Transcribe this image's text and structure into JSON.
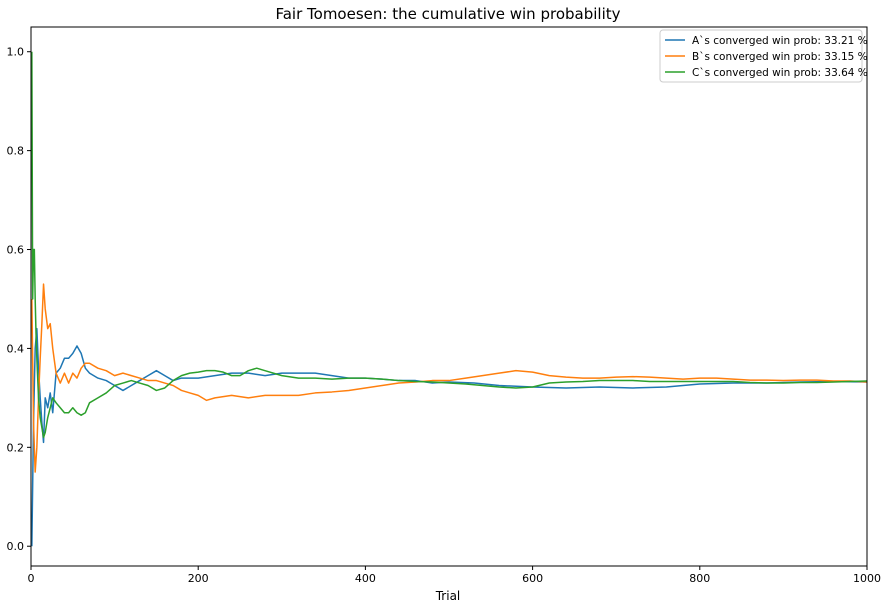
{
  "chart_data": {
    "type": "line",
    "title": "Fair Tomoesen: the cumulative win probability",
    "xlabel": "Trial",
    "ylabel": "",
    "xlim": [
      0,
      1000
    ],
    "ylim": [
      -0.04,
      1.05
    ],
    "xticks": [
      0,
      200,
      400,
      600,
      800,
      1000
    ],
    "yticks": [
      0.0,
      0.2,
      0.4,
      0.6,
      0.8,
      1.0
    ],
    "xtick_labels": [
      "0",
      "200",
      "400",
      "600",
      "800",
      "1000"
    ],
    "ytick_labels": [
      "0.0",
      "0.2",
      "0.4",
      "0.6",
      "0.8",
      "1.0"
    ],
    "grid": false,
    "legend_position": "top-right",
    "series": [
      {
        "name": "A`s converged win prob: 33.21 %",
        "color": "#1f77b4",
        "points": [
          [
            1,
            0
          ],
          [
            3,
            0.25
          ],
          [
            5,
            0.4
          ],
          [
            7,
            0.44
          ],
          [
            9,
            0.36
          ],
          [
            11,
            0.3
          ],
          [
            13,
            0.25
          ],
          [
            15,
            0.21
          ],
          [
            17,
            0.3
          ],
          [
            20,
            0.28
          ],
          [
            23,
            0.31
          ],
          [
            26,
            0.27
          ],
          [
            30,
            0.35
          ],
          [
            35,
            0.36
          ],
          [
            40,
            0.38
          ],
          [
            45,
            0.38
          ],
          [
            50,
            0.39
          ],
          [
            55,
            0.405
          ],
          [
            60,
            0.39
          ],
          [
            65,
            0.36
          ],
          [
            70,
            0.35
          ],
          [
            80,
            0.34
          ],
          [
            90,
            0.335
          ],
          [
            100,
            0.325
          ],
          [
            110,
            0.315
          ],
          [
            120,
            0.325
          ],
          [
            130,
            0.335
          ],
          [
            140,
            0.345
          ],
          [
            150,
            0.355
          ],
          [
            160,
            0.345
          ],
          [
            170,
            0.335
          ],
          [
            180,
            0.34
          ],
          [
            200,
            0.34
          ],
          [
            220,
            0.345
          ],
          [
            240,
            0.35
          ],
          [
            260,
            0.35
          ],
          [
            280,
            0.345
          ],
          [
            300,
            0.35
          ],
          [
            320,
            0.35
          ],
          [
            340,
            0.35
          ],
          [
            360,
            0.345
          ],
          [
            380,
            0.34
          ],
          [
            400,
            0.34
          ],
          [
            420,
            0.338
          ],
          [
            440,
            0.335
          ],
          [
            460,
            0.335
          ],
          [
            480,
            0.33
          ],
          [
            500,
            0.332
          ],
          [
            530,
            0.33
          ],
          [
            560,
            0.325
          ],
          [
            600,
            0.322
          ],
          [
            640,
            0.32
          ],
          [
            680,
            0.322
          ],
          [
            720,
            0.32
          ],
          [
            760,
            0.322
          ],
          [
            800,
            0.328
          ],
          [
            840,
            0.33
          ],
          [
            880,
            0.33
          ],
          [
            920,
            0.332
          ],
          [
            960,
            0.333
          ],
          [
            1000,
            0.332
          ]
        ]
      },
      {
        "name": "B`s converged win prob: 33.15 %",
        "color": "#ff7f0e",
        "points": [
          [
            1,
            0.5
          ],
          [
            3,
            0.25
          ],
          [
            5,
            0.15
          ],
          [
            7,
            0.2
          ],
          [
            9,
            0.3
          ],
          [
            11,
            0.38
          ],
          [
            13,
            0.45
          ],
          [
            15,
            0.53
          ],
          [
            17,
            0.48
          ],
          [
            20,
            0.44
          ],
          [
            23,
            0.45
          ],
          [
            26,
            0.4
          ],
          [
            30,
            0.35
          ],
          [
            35,
            0.33
          ],
          [
            40,
            0.35
          ],
          [
            45,
            0.33
          ],
          [
            50,
            0.35
          ],
          [
            55,
            0.34
          ],
          [
            60,
            0.36
          ],
          [
            65,
            0.37
          ],
          [
            70,
            0.37
          ],
          [
            80,
            0.36
          ],
          [
            90,
            0.355
          ],
          [
            100,
            0.345
          ],
          [
            110,
            0.35
          ],
          [
            120,
            0.345
          ],
          [
            130,
            0.34
          ],
          [
            140,
            0.335
          ],
          [
            150,
            0.335
          ],
          [
            160,
            0.33
          ],
          [
            170,
            0.325
          ],
          [
            180,
            0.315
          ],
          [
            190,
            0.31
          ],
          [
            200,
            0.305
          ],
          [
            210,
            0.295
          ],
          [
            220,
            0.3
          ],
          [
            240,
            0.305
          ],
          [
            260,
            0.3
          ],
          [
            280,
            0.305
          ],
          [
            300,
            0.305
          ],
          [
            320,
            0.305
          ],
          [
            340,
            0.31
          ],
          [
            360,
            0.312
          ],
          [
            380,
            0.315
          ],
          [
            400,
            0.32
          ],
          [
            420,
            0.325
          ],
          [
            440,
            0.33
          ],
          [
            460,
            0.332
          ],
          [
            480,
            0.335
          ],
          [
            500,
            0.335
          ],
          [
            520,
            0.34
          ],
          [
            540,
            0.345
          ],
          [
            560,
            0.35
          ],
          [
            580,
            0.355
          ],
          [
            600,
            0.352
          ],
          [
            620,
            0.345
          ],
          [
            640,
            0.342
          ],
          [
            660,
            0.34
          ],
          [
            680,
            0.34
          ],
          [
            700,
            0.342
          ],
          [
            720,
            0.343
          ],
          [
            740,
            0.342
          ],
          [
            760,
            0.34
          ],
          [
            780,
            0.338
          ],
          [
            800,
            0.34
          ],
          [
            820,
            0.34
          ],
          [
            840,
            0.338
          ],
          [
            860,
            0.336
          ],
          [
            880,
            0.336
          ],
          [
            900,
            0.335
          ],
          [
            920,
            0.336
          ],
          [
            940,
            0.336
          ],
          [
            960,
            0.334
          ],
          [
            980,
            0.334
          ],
          [
            1000,
            0.332
          ]
        ]
      },
      {
        "name": "C`s converged win prob: 33.64 %",
        "color": "#2ca02c",
        "points": [
          [
            1,
            1.0
          ],
          [
            2,
            0.5
          ],
          [
            3,
            0.6
          ],
          [
            4,
            0.6
          ],
          [
            5,
            0.5
          ],
          [
            6,
            0.43
          ],
          [
            7,
            0.38
          ],
          [
            9,
            0.3
          ],
          [
            11,
            0.26
          ],
          [
            13,
            0.24
          ],
          [
            15,
            0.22
          ],
          [
            17,
            0.23
          ],
          [
            20,
            0.26
          ],
          [
            23,
            0.28
          ],
          [
            26,
            0.3
          ],
          [
            30,
            0.29
          ],
          [
            35,
            0.28
          ],
          [
            40,
            0.27
          ],
          [
            45,
            0.27
          ],
          [
            50,
            0.28
          ],
          [
            55,
            0.27
          ],
          [
            60,
            0.265
          ],
          [
            65,
            0.27
          ],
          [
            70,
            0.29
          ],
          [
            80,
            0.3
          ],
          [
            90,
            0.31
          ],
          [
            100,
            0.325
          ],
          [
            110,
            0.33
          ],
          [
            120,
            0.335
          ],
          [
            130,
            0.33
          ],
          [
            140,
            0.325
          ],
          [
            150,
            0.315
          ],
          [
            160,
            0.32
          ],
          [
            170,
            0.335
          ],
          [
            180,
            0.345
          ],
          [
            190,
            0.35
          ],
          [
            200,
            0.352
          ],
          [
            210,
            0.355
          ],
          [
            220,
            0.355
          ],
          [
            230,
            0.352
          ],
          [
            240,
            0.345
          ],
          [
            250,
            0.345
          ],
          [
            260,
            0.355
          ],
          [
            270,
            0.36
          ],
          [
            280,
            0.355
          ],
          [
            300,
            0.345
          ],
          [
            320,
            0.34
          ],
          [
            340,
            0.34
          ],
          [
            360,
            0.338
          ],
          [
            380,
            0.34
          ],
          [
            400,
            0.34
          ],
          [
            420,
            0.338
          ],
          [
            440,
            0.335
          ],
          [
            460,
            0.333
          ],
          [
            480,
            0.332
          ],
          [
            500,
            0.33
          ],
          [
            520,
            0.328
          ],
          [
            540,
            0.325
          ],
          [
            560,
            0.322
          ],
          [
            580,
            0.32
          ],
          [
            600,
            0.322
          ],
          [
            620,
            0.33
          ],
          [
            640,
            0.332
          ],
          [
            660,
            0.333
          ],
          [
            680,
            0.335
          ],
          [
            700,
            0.335
          ],
          [
            720,
            0.335
          ],
          [
            740,
            0.333
          ],
          [
            760,
            0.333
          ],
          [
            780,
            0.333
          ],
          [
            800,
            0.333
          ],
          [
            820,
            0.333
          ],
          [
            840,
            0.333
          ],
          [
            860,
            0.331
          ],
          [
            880,
            0.33
          ],
          [
            900,
            0.33
          ],
          [
            920,
            0.331
          ],
          [
            940,
            0.331
          ],
          [
            960,
            0.332
          ],
          [
            980,
            0.333
          ],
          [
            1000,
            0.334
          ]
        ]
      }
    ]
  }
}
